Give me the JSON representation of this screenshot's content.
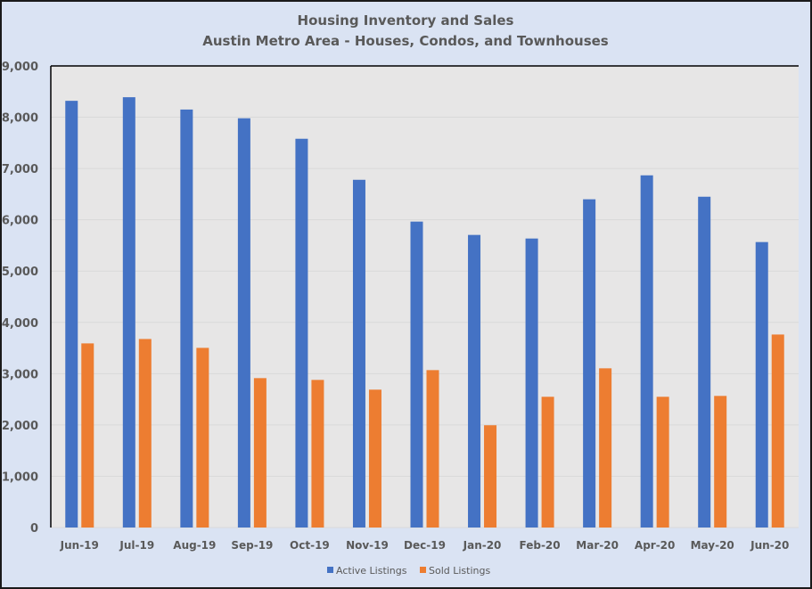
{
  "chart_data": {
    "type": "bar",
    "title": "Housing Inventory and Sales",
    "subtitle": "Austin Metro Area - Houses, Condos, and Townhouses",
    "xlabel": "",
    "ylabel": "",
    "ylim": [
      0,
      9000
    ],
    "yticks": [
      0,
      1000,
      2000,
      3000,
      4000,
      5000,
      6000,
      7000,
      8000,
      9000
    ],
    "ytick_labels": [
      "0",
      "1,000",
      "2,000",
      "3,000",
      "4,000",
      "5,000",
      "6,000",
      "7,000",
      "8,000",
      "9,000"
    ],
    "grid": true,
    "legend_position": "bottom",
    "categories": [
      "Jun-19",
      "Jul-19",
      "Aug-19",
      "Sep-19",
      "Oct-19",
      "Nov-19",
      "Dec-19",
      "Jan-20",
      "Feb-20",
      "Mar-20",
      "Apr-20",
      "May-20",
      "Jun-20"
    ],
    "series": [
      {
        "name": "Active Listings",
        "color": "#4472c4",
        "values": [
          8320,
          8390,
          8150,
          7980,
          7580,
          6780,
          5965,
          5705,
          5635,
          6400,
          6867,
          6450,
          5566
        ]
      },
      {
        "name": "Sold Listings",
        "color": "#ed7d31",
        "values": [
          3590,
          3676,
          3503,
          2913,
          2878,
          2688,
          3069,
          1994,
          2549,
          3104,
          2549,
          2566,
          3763
        ]
      }
    ]
  }
}
